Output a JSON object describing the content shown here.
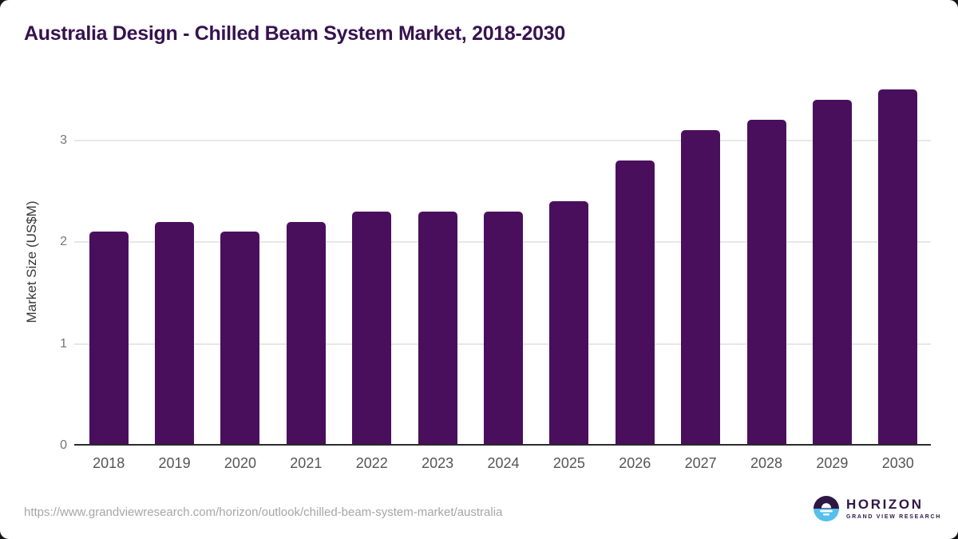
{
  "title": "Australia Design - Chilled Beam System Market, 2018-2030",
  "chart_data": {
    "type": "bar",
    "title": "Australia Design - Chilled Beam System Market, 2018-2030",
    "categories": [
      "2018",
      "2019",
      "2020",
      "2021",
      "2022",
      "2023",
      "2024",
      "2025",
      "2026",
      "2027",
      "2028",
      "2029",
      "2030"
    ],
    "values": [
      2.1,
      2.2,
      2.1,
      2.2,
      2.3,
      2.3,
      2.3,
      2.4,
      2.8,
      3.1,
      3.2,
      3.4,
      3.5
    ],
    "xlabel": "",
    "ylabel": "Market Size (US$M)",
    "ylim": [
      0,
      3.6
    ],
    "yticks": [
      0,
      1,
      2,
      3
    ],
    "grid": true,
    "legend": "none",
    "bar_color": "#4a0f5c"
  },
  "footer": {
    "source_url": "https://www.grandviewresearch.com/horizon/outlook/chilled-beam-system-market/australia",
    "logo": {
      "name": "HORIZON",
      "subtitle": "GRAND VIEW RESEARCH",
      "icon": "sunset-circle-icon",
      "color_top": "#2e1745",
      "color_bottom": "#54c0eb"
    }
  },
  "colors": {
    "title_text": "#37124f",
    "bar": "#4a0f5c",
    "axis_line": "#2b2b2b",
    "gridline": "#e7e7e7",
    "tick_text": "#757575",
    "xtick_text": "#555555",
    "url_text": "#a6a6a6",
    "background": "#ffffff"
  }
}
